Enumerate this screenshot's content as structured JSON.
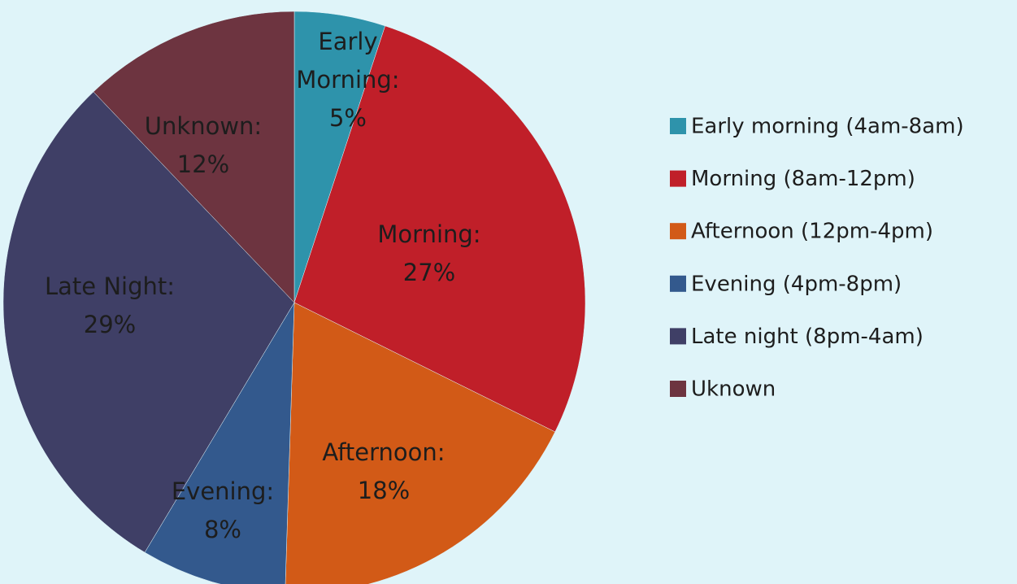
{
  "chart_data": {
    "type": "pie",
    "categories": [
      "Early morning (4am-8am)",
      "Morning (8am-12pm)",
      "Afternoon (12pm-4pm)",
      "Evening (4pm-8pm)",
      "Late night (8pm-4am)",
      "Uknown"
    ],
    "slice_labels": [
      "Early Morning:",
      "Morning:",
      "Afternoon:",
      "Evening:",
      "Late Night:",
      "Unknown:"
    ],
    "values": [
      5,
      27,
      18,
      8,
      29,
      12
    ],
    "value_labels": [
      "5%",
      "27%",
      "18%",
      "8%",
      "29%",
      "12%"
    ],
    "colors": [
      "#2e93ab",
      "#c01f29",
      "#d25a17",
      "#33598d",
      "#3f3f66",
      "#6d3440"
    ],
    "legend": "right"
  }
}
